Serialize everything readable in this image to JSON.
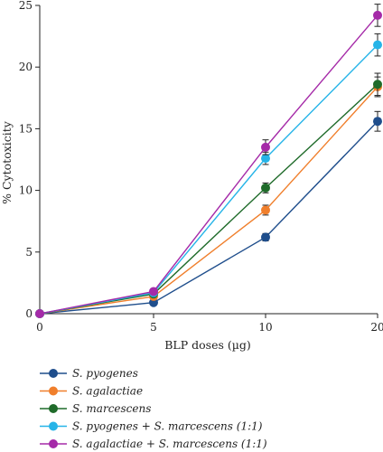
{
  "chart_data": {
    "type": "line",
    "xlabel": "BLP doses (µg)",
    "ylabel": "% Cytotoxicity",
    "x": [
      0,
      5,
      10,
      20
    ],
    "x_ticks": [
      "0",
      "5",
      "10",
      "20"
    ],
    "ylim": [
      0,
      25
    ],
    "y_ticks": [
      0,
      5,
      10,
      15,
      20,
      25
    ],
    "grid": false,
    "legend_position": "bottom",
    "series": [
      {
        "name": "S. pyogenes",
        "color": "#1f4e8c",
        "values": [
          0,
          0.9,
          6.2,
          15.6
        ],
        "errors": [
          0,
          0.1,
          0.3,
          0.8
        ]
      },
      {
        "name": "S. agalactiae",
        "color": "#f07f2c",
        "values": [
          0,
          1.4,
          8.4,
          18.4
        ],
        "errors": [
          0,
          0.1,
          0.4,
          0.8
        ]
      },
      {
        "name": "S. marcescens",
        "color": "#1f6b2a",
        "values": [
          0,
          1.6,
          10.2,
          18.6
        ],
        "errors": [
          0,
          0.1,
          0.4,
          0.9
        ]
      },
      {
        "name": "S. pyogenes + S. marcescens (1:1)",
        "color": "#26b4e8",
        "values": [
          0,
          1.7,
          12.6,
          21.8
        ],
        "errors": [
          0,
          0.1,
          0.5,
          0.9
        ]
      },
      {
        "name": "S. agalactiae + S. marcescens (1:1)",
        "color": "#a52aa8",
        "values": [
          0,
          1.8,
          13.5,
          24.2
        ],
        "errors": [
          0,
          0.1,
          0.6,
          0.9
        ]
      }
    ]
  }
}
